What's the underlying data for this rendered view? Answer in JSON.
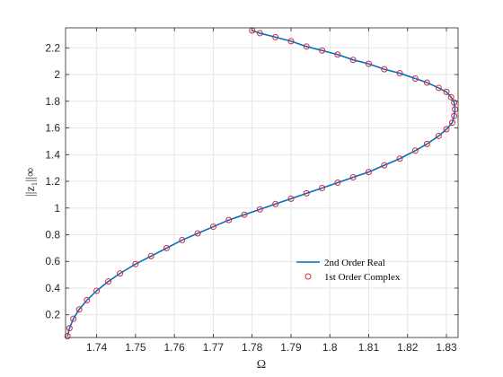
{
  "chart_data": {
    "type": "line",
    "xlabel": "Ω",
    "ylabel": "||z₁||∞",
    "xlim": [
      1.732,
      1.833
    ],
    "ylim": [
      0.03,
      2.35
    ],
    "xticks": [
      1.74,
      1.75,
      1.76,
      1.77,
      1.78,
      1.79,
      1.8,
      1.81,
      1.82,
      1.83
    ],
    "yticks": [
      0.2,
      0.4,
      0.6,
      0.8,
      1,
      1.2,
      1.4,
      1.6,
      1.8,
      2,
      2.2
    ],
    "xtick_labels": [
      "1.74",
      "1.75",
      "1.76",
      "1.77",
      "1.78",
      "1.79",
      "1.8",
      "1.81",
      "1.82",
      "1.83"
    ],
    "ytick_labels": [
      "0.2",
      "0.4",
      "0.6",
      "0.8",
      "1",
      "1.2",
      "1.4",
      "1.6",
      "1.8",
      "2",
      "2.2"
    ],
    "grid": true,
    "legend_position": "bottom-right",
    "colors": {
      "line": "#0072BD",
      "markers": "#D7263D"
    },
    "series": [
      {
        "name": "2nd Order Real",
        "style": "line",
        "x": [
          1.7325,
          1.733,
          1.734,
          1.7355,
          1.7375,
          1.74,
          1.743,
          1.746,
          1.75,
          1.754,
          1.758,
          1.762,
          1.766,
          1.77,
          1.774,
          1.778,
          1.782,
          1.786,
          1.79,
          1.794,
          1.798,
          1.802,
          1.806,
          1.81,
          1.814,
          1.818,
          1.822,
          1.825,
          1.828,
          1.83,
          1.8315,
          1.832,
          1.8322,
          1.832,
          1.8312,
          1.83,
          1.828,
          1.825,
          1.822,
          1.818,
          1.814,
          1.81,
          1.806,
          1.802,
          1.798,
          1.794,
          1.79,
          1.786,
          1.782,
          1.78
        ],
        "y": [
          0.04,
          0.1,
          0.17,
          0.24,
          0.31,
          0.38,
          0.45,
          0.51,
          0.58,
          0.64,
          0.7,
          0.76,
          0.81,
          0.86,
          0.91,
          0.95,
          0.99,
          1.03,
          1.07,
          1.11,
          1.15,
          1.19,
          1.23,
          1.27,
          1.32,
          1.37,
          1.43,
          1.48,
          1.54,
          1.59,
          1.64,
          1.69,
          1.74,
          1.79,
          1.83,
          1.87,
          1.9,
          1.94,
          1.97,
          2.01,
          2.04,
          2.08,
          2.11,
          2.15,
          2.18,
          2.21,
          2.25,
          2.28,
          2.31,
          2.33
        ]
      },
      {
        "name": "1st Order Complex",
        "style": "markers",
        "x": [
          1.7325,
          1.733,
          1.734,
          1.7355,
          1.7375,
          1.74,
          1.743,
          1.746,
          1.75,
          1.754,
          1.758,
          1.762,
          1.766,
          1.77,
          1.774,
          1.778,
          1.782,
          1.786,
          1.79,
          1.794,
          1.798,
          1.802,
          1.806,
          1.81,
          1.814,
          1.818,
          1.822,
          1.825,
          1.828,
          1.83,
          1.8315,
          1.832,
          1.8322,
          1.832,
          1.8312,
          1.83,
          1.828,
          1.825,
          1.822,
          1.818,
          1.814,
          1.81,
          1.806,
          1.802,
          1.798,
          1.794,
          1.79,
          1.786,
          1.782,
          1.78
        ],
        "y": [
          0.04,
          0.1,
          0.17,
          0.24,
          0.31,
          0.38,
          0.45,
          0.51,
          0.58,
          0.64,
          0.7,
          0.76,
          0.81,
          0.86,
          0.91,
          0.95,
          0.99,
          1.03,
          1.07,
          1.11,
          1.15,
          1.19,
          1.23,
          1.27,
          1.32,
          1.37,
          1.43,
          1.48,
          1.54,
          1.59,
          1.64,
          1.69,
          1.74,
          1.79,
          1.83,
          1.87,
          1.9,
          1.94,
          1.97,
          2.01,
          2.04,
          2.08,
          2.11,
          2.15,
          2.18,
          2.21,
          2.25,
          2.28,
          2.31,
          2.33
        ]
      }
    ]
  }
}
